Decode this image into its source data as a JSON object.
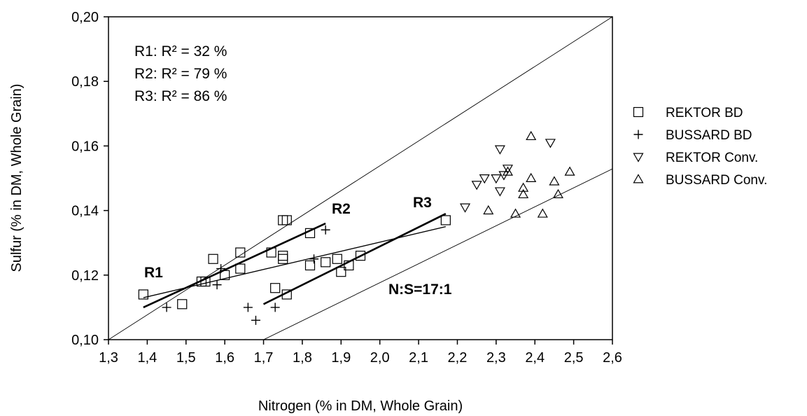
{
  "chart_data": {
    "type": "scatter",
    "title": "",
    "xlabel": "Nitrogen (% in DM, Whole Grain)",
    "ylabel": "Sulfur (% in DM, Whole Grain)",
    "xlim": [
      1.3,
      2.6
    ],
    "ylim": [
      0.1,
      0.2
    ],
    "xticks": [
      1.3,
      1.4,
      1.5,
      1.6,
      1.7,
      1.8,
      1.9,
      2.0,
      2.1,
      2.2,
      2.3,
      2.4,
      2.5,
      2.6
    ],
    "yticks": [
      0.1,
      0.12,
      0.14,
      0.16,
      0.18,
      0.2
    ],
    "xtick_labels": [
      "1,3",
      "1,4",
      "1,5",
      "1,6",
      "1,7",
      "1,8",
      "1,9",
      "2,0",
      "2,1",
      "2,2",
      "2,3",
      "2,4",
      "2,5",
      "2,6"
    ],
    "ytick_labels": [
      "0,10",
      "0,12",
      "0,14",
      "0,16",
      "0,18",
      "0,20"
    ],
    "grid": false,
    "legend_position": "right",
    "series": [
      {
        "name": "REKTOR BD",
        "marker": "square",
        "points": [
          [
            1.39,
            0.114
          ],
          [
            1.49,
            0.111
          ],
          [
            1.54,
            0.118
          ],
          [
            1.55,
            0.118
          ],
          [
            1.57,
            0.125
          ],
          [
            1.6,
            0.12
          ],
          [
            1.64,
            0.127
          ],
          [
            1.64,
            0.122
          ],
          [
            1.72,
            0.127
          ],
          [
            1.73,
            0.116
          ],
          [
            1.75,
            0.137
          ],
          [
            1.76,
            0.137
          ],
          [
            1.75,
            0.126
          ],
          [
            1.75,
            0.125
          ],
          [
            1.76,
            0.114
          ],
          [
            1.82,
            0.133
          ],
          [
            1.82,
            0.123
          ],
          [
            1.86,
            0.124
          ],
          [
            1.89,
            0.125
          ],
          [
            1.9,
            0.121
          ],
          [
            1.92,
            0.123
          ],
          [
            1.95,
            0.126
          ],
          [
            2.17,
            0.137
          ]
        ]
      },
      {
        "name": "BUSSARD BD",
        "marker": "plus",
        "points": [
          [
            1.45,
            0.11
          ],
          [
            1.58,
            0.117
          ],
          [
            1.59,
            0.122
          ],
          [
            1.66,
            0.11
          ],
          [
            1.68,
            0.106
          ],
          [
            1.73,
            0.11
          ],
          [
            1.83,
            0.125
          ],
          [
            1.86,
            0.134
          ]
        ]
      },
      {
        "name": "REKTOR Conv.",
        "marker": "triangle-down",
        "points": [
          [
            2.31,
            0.159
          ],
          [
            2.44,
            0.161
          ],
          [
            2.33,
            0.153
          ],
          [
            2.32,
            0.151
          ],
          [
            2.27,
            0.15
          ],
          [
            2.3,
            0.15
          ],
          [
            2.31,
            0.146
          ],
          [
            2.25,
            0.148
          ],
          [
            2.22,
            0.141
          ]
        ]
      },
      {
        "name": "BUSSARD Conv.",
        "marker": "triangle-up",
        "points": [
          [
            2.39,
            0.163
          ],
          [
            2.33,
            0.152
          ],
          [
            2.39,
            0.15
          ],
          [
            2.49,
            0.152
          ],
          [
            2.45,
            0.149
          ],
          [
            2.37,
            0.147
          ],
          [
            2.37,
            0.145
          ],
          [
            2.46,
            0.145
          ],
          [
            2.28,
            0.14
          ],
          [
            2.35,
            0.139
          ],
          [
            2.42,
            0.139
          ]
        ]
      }
    ],
    "reference_lines": [
      {
        "points": [
          [
            1.3,
            0.1
          ],
          [
            2.6,
            0.2
          ]
        ]
      },
      {
        "label": "N:S=17:1",
        "points": [
          [
            1.7,
            0.1
          ],
          [
            2.6,
            0.1529
          ]
        ]
      }
    ],
    "regression_lines": [
      {
        "label": "R1",
        "points": [
          [
            1.39,
            0.113
          ],
          [
            2.17,
            0.135
          ]
        ]
      },
      {
        "label": "R2",
        "points": [
          [
            1.39,
            0.11
          ],
          [
            1.86,
            0.136
          ]
        ]
      },
      {
        "label": "R3",
        "points": [
          [
            1.7,
            0.111
          ],
          [
            2.17,
            0.139
          ]
        ]
      }
    ],
    "annotations": {
      "r2": [
        "R1: R² = 32 %",
        "R2: R² = 79 %",
        "R3: R² = 86 %"
      ]
    }
  }
}
